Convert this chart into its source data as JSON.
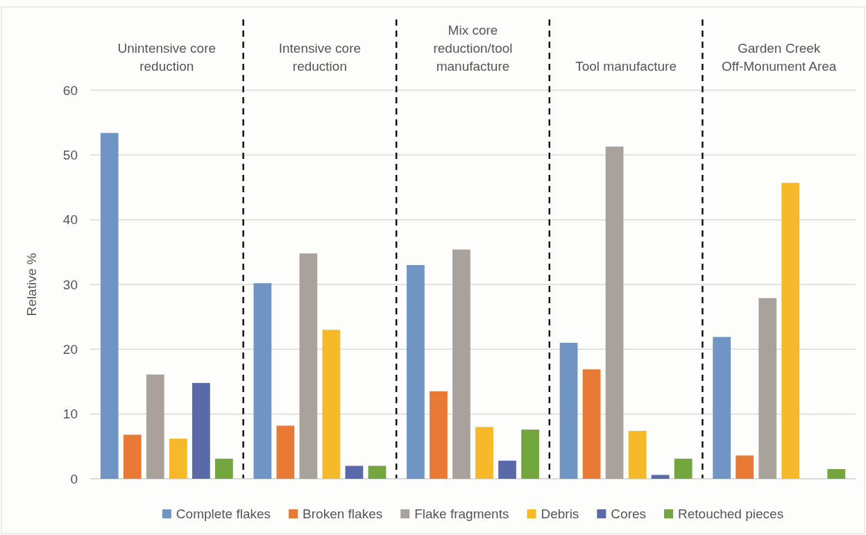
{
  "chart_data": {
    "type": "bar",
    "ylabel": "Relative %",
    "categories": [
      "Unintensive core reduction",
      "Intensive core reduction",
      "Mix core reduction/tool manufacture",
      "Tool manufacture",
      "Garden Creek Off-Monument Area"
    ],
    "series": [
      {
        "name": "Complete flakes",
        "color": "#7094c4",
        "values": [
          53.4,
          30.2,
          33.0,
          21.0,
          21.9
        ]
      },
      {
        "name": "Broken flakes",
        "color": "#e87a35",
        "values": [
          6.8,
          8.2,
          13.5,
          16.9,
          3.6
        ]
      },
      {
        "name": "Flake fragments",
        "color": "#a9a19c",
        "values": [
          16.1,
          34.8,
          35.4,
          51.3,
          27.9
        ]
      },
      {
        "name": "Debris",
        "color": "#f6b92a",
        "values": [
          6.2,
          23.0,
          8.0,
          7.4,
          45.7
        ]
      },
      {
        "name": "Cores",
        "color": "#5a6aa8",
        "values": [
          14.8,
          2.0,
          2.8,
          0.6,
          null
        ]
      },
      {
        "name": "Retouched pieces",
        "color": "#74a640",
        "values": [
          3.1,
          2.0,
          7.6,
          3.1,
          1.5
        ]
      }
    ],
    "ylim": [
      0,
      60
    ],
    "yticks": [
      0,
      10,
      20,
      30,
      40,
      50,
      60
    ],
    "grid": "y",
    "legend": "bottom"
  }
}
